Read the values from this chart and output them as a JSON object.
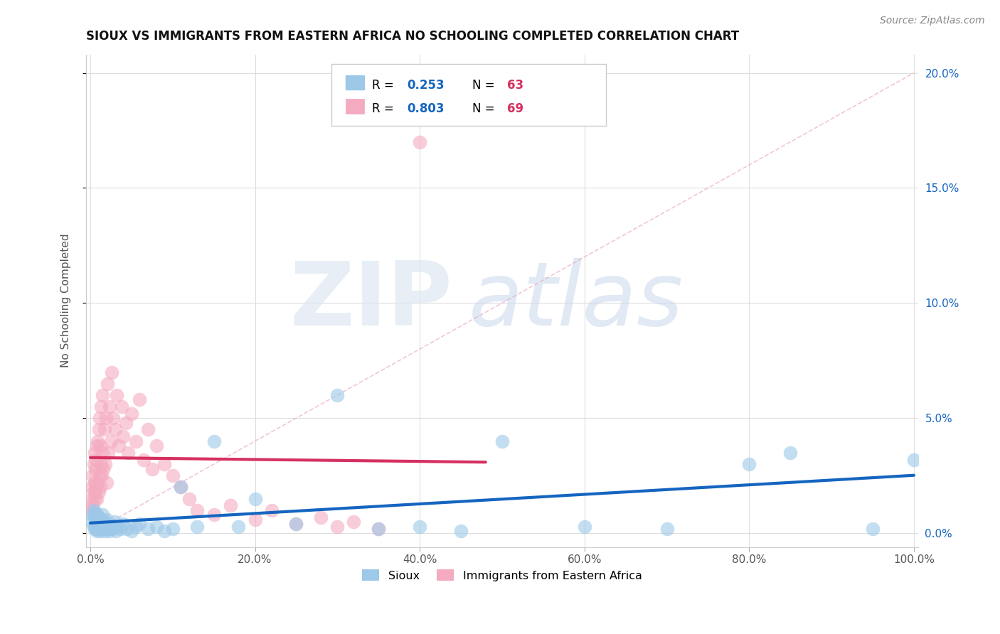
{
  "title": "SIOUX VS IMMIGRANTS FROM EASTERN AFRICA NO SCHOOLING COMPLETED CORRELATION CHART",
  "source_text": "Source: ZipAtlas.com",
  "ylabel": "No Schooling Completed",
  "watermark_zip": "ZIP",
  "watermark_atlas": "atlas",
  "series1_label": "Sioux",
  "series2_label": "Immigrants from Eastern Africa",
  "series1_R": "0.253",
  "series1_N": "63",
  "series2_R": "0.803",
  "series2_N": "69",
  "series1_color": "#9DC8E8",
  "series2_color": "#F4AABF",
  "series1_line_color": "#1565C0",
  "series2_line_color": "#D63060",
  "ref_line_color": "#E8B0C8",
  "blue_text_color": "#1565C0",
  "red_text_color": "#D63060",
  "xlim": [
    -0.005,
    1.005
  ],
  "ylim": [
    -0.006,
    0.208
  ],
  "xticks": [
    0.0,
    0.2,
    0.4,
    0.6,
    0.8,
    1.0
  ],
  "yticks": [
    0.0,
    0.05,
    0.1,
    0.15,
    0.2
  ],
  "background_color": "#FFFFFF",
  "grid_color": "#DDDDDD",
  "title_color": "#111111",
  "sioux_x": [
    0.002,
    0.003,
    0.004,
    0.004,
    0.005,
    0.005,
    0.006,
    0.006,
    0.007,
    0.007,
    0.008,
    0.008,
    0.009,
    0.009,
    0.01,
    0.01,
    0.011,
    0.012,
    0.012,
    0.013,
    0.014,
    0.015,
    0.015,
    0.016,
    0.017,
    0.018,
    0.019,
    0.02,
    0.021,
    0.022,
    0.023,
    0.025,
    0.027,
    0.029,
    0.031,
    0.033,
    0.036,
    0.04,
    0.044,
    0.05,
    0.055,
    0.06,
    0.07,
    0.08,
    0.09,
    0.1,
    0.11,
    0.13,
    0.15,
    0.18,
    0.2,
    0.25,
    0.3,
    0.35,
    0.4,
    0.45,
    0.5,
    0.6,
    0.7,
    0.8,
    0.85,
    0.95,
    1.0
  ],
  "sioux_y": [
    0.005,
    0.008,
    0.003,
    0.01,
    0.002,
    0.007,
    0.004,
    0.009,
    0.003,
    0.006,
    0.001,
    0.008,
    0.002,
    0.005,
    0.003,
    0.007,
    0.004,
    0.001,
    0.006,
    0.003,
    0.002,
    0.004,
    0.008,
    0.002,
    0.005,
    0.001,
    0.003,
    0.006,
    0.002,
    0.004,
    0.001,
    0.003,
    0.002,
    0.005,
    0.001,
    0.003,
    0.002,
    0.004,
    0.002,
    0.001,
    0.003,
    0.004,
    0.002,
    0.003,
    0.001,
    0.002,
    0.02,
    0.003,
    0.04,
    0.003,
    0.015,
    0.004,
    0.06,
    0.002,
    0.003,
    0.001,
    0.04,
    0.003,
    0.002,
    0.03,
    0.035,
    0.002,
    0.032
  ],
  "eastern_x": [
    0.001,
    0.002,
    0.002,
    0.003,
    0.003,
    0.004,
    0.004,
    0.005,
    0.005,
    0.005,
    0.006,
    0.006,
    0.007,
    0.007,
    0.008,
    0.008,
    0.009,
    0.009,
    0.01,
    0.01,
    0.011,
    0.011,
    0.012,
    0.012,
    0.013,
    0.013,
    0.014,
    0.015,
    0.015,
    0.016,
    0.017,
    0.018,
    0.019,
    0.02,
    0.021,
    0.022,
    0.023,
    0.025,
    0.026,
    0.028,
    0.03,
    0.032,
    0.035,
    0.038,
    0.04,
    0.043,
    0.046,
    0.05,
    0.055,
    0.06,
    0.065,
    0.07,
    0.075,
    0.08,
    0.09,
    0.1,
    0.11,
    0.12,
    0.13,
    0.15,
    0.17,
    0.2,
    0.22,
    0.25,
    0.28,
    0.3,
    0.32,
    0.35,
    0.4
  ],
  "eastern_y": [
    0.01,
    0.015,
    0.02,
    0.012,
    0.025,
    0.018,
    0.03,
    0.015,
    0.022,
    0.035,
    0.018,
    0.028,
    0.02,
    0.032,
    0.015,
    0.038,
    0.022,
    0.04,
    0.018,
    0.045,
    0.025,
    0.05,
    0.02,
    0.038,
    0.03,
    0.055,
    0.025,
    0.035,
    0.06,
    0.028,
    0.045,
    0.03,
    0.05,
    0.022,
    0.065,
    0.035,
    0.055,
    0.04,
    0.07,
    0.05,
    0.045,
    0.06,
    0.038,
    0.055,
    0.042,
    0.048,
    0.035,
    0.052,
    0.04,
    0.058,
    0.032,
    0.045,
    0.028,
    0.038,
    0.03,
    0.025,
    0.02,
    0.015,
    0.01,
    0.008,
    0.012,
    0.006,
    0.01,
    0.004,
    0.007,
    0.003,
    0.005,
    0.002,
    0.17
  ]
}
